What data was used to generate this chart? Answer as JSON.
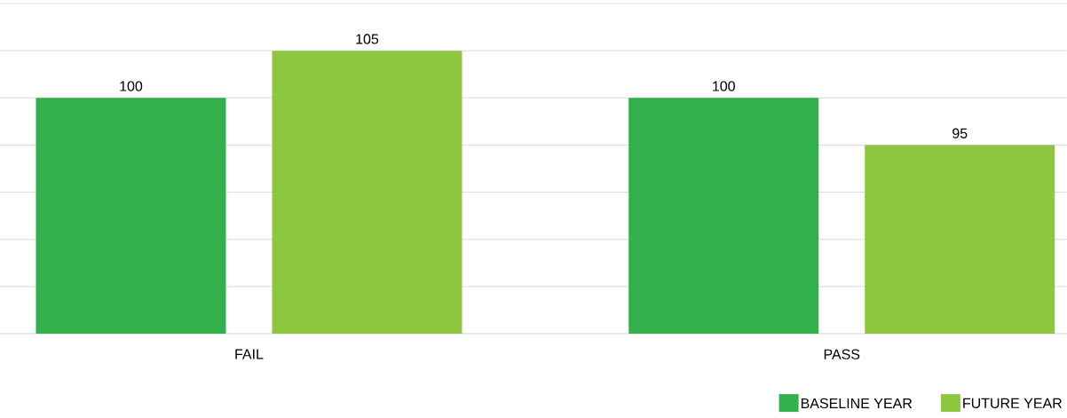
{
  "chart_data": {
    "type": "bar",
    "categories": [
      "FAIL",
      "PASS"
    ],
    "series": [
      {
        "name": "BASELINE YEAR",
        "color": "#31b04b",
        "values": [
          100,
          100
        ]
      },
      {
        "name": "FUTURE YEAR",
        "color": "#8dc63f",
        "values": [
          105,
          95
        ]
      }
    ],
    "ylim": [
      75,
      110
    ],
    "yticks": [
      {
        "value": 75,
        "label": null
      },
      {
        "value": 80,
        "label": null
      },
      {
        "value": 85,
        "label": null
      },
      {
        "value": 90,
        "label": null
      },
      {
        "value": 95,
        "label": null
      },
      {
        "value": 100,
        "label": null
      },
      {
        "value": 105,
        "label": null
      },
      {
        "value": 110,
        "label": null
      }
    ],
    "tick_labels": "x",
    "grid": "y",
    "legend": "bottom right",
    "data_labels": true
  }
}
